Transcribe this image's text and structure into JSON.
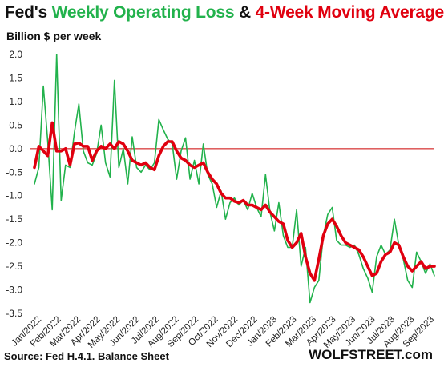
{
  "title_parts": [
    {
      "text": "Fed's ",
      "color": "#111111"
    },
    {
      "text": "Weekly Operating  Loss",
      "color": "#22b24c"
    },
    {
      "text": " & ",
      "color": "#111111"
    },
    {
      "text": "4-Week Moving Average",
      "color": "#e0000f"
    }
  ],
  "subtitle": "Billion $ per week",
  "source": "Source: Fed H.4.1. Balance Sheet",
  "brand": "WOLFSTREET.com",
  "chart_data": {
    "type": "line",
    "ylabel": "Billion $ per week",
    "ylim": [
      -3.5,
      2.0
    ],
    "yticks": [
      2.0,
      1.5,
      1.0,
      0.5,
      0.0,
      -0.5,
      -1.0,
      -1.5,
      -2.0,
      -2.5,
      -3.0,
      -3.5
    ],
    "ytick_labels": [
      "2.0",
      "1.5",
      "1.0",
      "0.5",
      "0.0",
      "-0.5",
      "-1.0",
      "-1.5",
      "-2.0",
      "-2.5",
      "-3.0",
      "-3.5"
    ],
    "xticks": [
      "Jan/2022",
      "Feb/2022",
      "Mar/2022",
      "Apr/2022",
      "May/2022",
      "Jun/2022",
      "Jul/2022",
      "Aug/2022",
      "Sep/2022",
      "Oct/2022",
      "Nov/2022",
      "Dec/2022",
      "Jan/2023",
      "Feb/2023",
      "Mar/2023",
      "Apr/2023",
      "May/2023",
      "Jun/2023",
      "Jul/2023",
      "Aug/2023",
      "Sep/2023"
    ],
    "x_week_range": [
      0,
      90
    ],
    "zero_line_color": "#cc0000",
    "series": [
      {
        "name": "Weekly Operating  Loss",
        "color": "#22b24c",
        "values": [
          -0.75,
          -0.4,
          1.33,
          0.15,
          -1.3,
          2.0,
          -1.1,
          -0.35,
          -0.4,
          0.35,
          0.95,
          -0.05,
          -0.3,
          -0.35,
          -0.1,
          0.5,
          -0.3,
          -0.6,
          1.45,
          -0.4,
          0.0,
          -0.75,
          0.25,
          -0.4,
          -0.5,
          -0.35,
          -0.45,
          -0.3,
          0.62,
          0.4,
          0.2,
          0.1,
          -0.65,
          -0.05,
          0.23,
          -0.65,
          -0.25,
          -0.75,
          0.1,
          -0.55,
          -0.75,
          -1.25,
          -0.9,
          -1.5,
          -1.15,
          -1.05,
          -1.2,
          -1.1,
          -1.3,
          -0.95,
          -1.25,
          -1.45,
          -0.55,
          -1.35,
          -1.75,
          -1.15,
          -1.85,
          -2.1,
          -2.1,
          -1.3,
          -2.5,
          -2.1,
          -3.27,
          -2.95,
          -2.8,
          -1.85,
          -1.4,
          -1.25,
          -1.95,
          -2.05,
          -2.05,
          -2.1,
          -2.05,
          -2.25,
          -2.55,
          -2.75,
          -3.05,
          -2.3,
          -2.05,
          -2.25,
          -2.15,
          -1.5,
          -2.05,
          -2.35,
          -2.8,
          -2.95,
          -2.2,
          -2.4,
          -2.65,
          -2.45,
          -2.7
        ],
        "thickness": "thin"
      },
      {
        "name": "4-Week Moving Average",
        "color": "#e0000f",
        "values": [
          -0.4,
          0.05,
          -0.05,
          -0.15,
          0.55,
          -0.05,
          -0.05,
          0.0,
          -0.35,
          0.1,
          0.12,
          0.05,
          0.05,
          -0.25,
          -0.05,
          0.05,
          0.0,
          0.1,
          0.0,
          0.15,
          0.1,
          -0.05,
          -0.25,
          -0.3,
          -0.35,
          -0.3,
          -0.4,
          -0.45,
          -0.15,
          0.05,
          0.15,
          0.15,
          -0.05,
          -0.2,
          -0.25,
          -0.35,
          -0.4,
          -0.35,
          -0.3,
          -0.5,
          -0.65,
          -0.75,
          -0.95,
          -1.05,
          -1.05,
          -1.12,
          -1.15,
          -1.1,
          -1.2,
          -1.2,
          -1.25,
          -1.3,
          -1.2,
          -1.35,
          -1.45,
          -1.55,
          -1.6,
          -1.95,
          -2.1,
          -2.0,
          -1.8,
          -2.3,
          -2.65,
          -2.8,
          -2.35,
          -1.85,
          -1.6,
          -1.5,
          -1.65,
          -1.85,
          -2.0,
          -2.05,
          -2.1,
          -2.15,
          -2.3,
          -2.5,
          -2.7,
          -2.65,
          -2.4,
          -2.25,
          -2.2,
          -2.0,
          -2.05,
          -2.3,
          -2.5,
          -2.6,
          -2.5,
          -2.4,
          -2.55,
          -2.5,
          -2.5
        ],
        "thickness": "thick"
      }
    ]
  }
}
